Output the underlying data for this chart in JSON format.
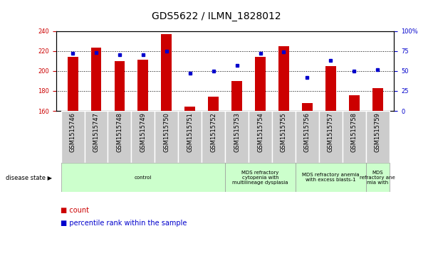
{
  "title": "GDS5622 / ILMN_1828012",
  "samples": [
    "GSM1515746",
    "GSM1515747",
    "GSM1515748",
    "GSM1515749",
    "GSM1515750",
    "GSM1515751",
    "GSM1515752",
    "GSM1515753",
    "GSM1515754",
    "GSM1515755",
    "GSM1515756",
    "GSM1515757",
    "GSM1515758",
    "GSM1515759"
  ],
  "bar_values": [
    214,
    223,
    210,
    211,
    237,
    164,
    174,
    190,
    214,
    225,
    168,
    205,
    176,
    183
  ],
  "bar_bottom": 160,
  "pct_values": [
    72,
    73,
    70,
    70,
    75,
    47,
    50,
    57,
    72,
    74,
    42,
    63,
    50,
    52
  ],
  "ylim_left": [
    160,
    240
  ],
  "ylim_right": [
    0,
    100
  ],
  "yticks_left": [
    160,
    180,
    200,
    220,
    240
  ],
  "yticks_right": [
    0,
    25,
    50,
    75,
    100
  ],
  "bar_color": "#cc0000",
  "dot_color": "#0000cc",
  "bg_color": "#ffffff",
  "gray_box_color": "#cccccc",
  "disease_color": "#ccffcc",
  "title_fontsize": 10,
  "tick_fontsize": 6,
  "label_fontsize": 6,
  "bar_width": 0.45,
  "groups": [
    {
      "label": "control",
      "start": 0,
      "end": 7
    },
    {
      "label": "MDS refractory\ncytopenia with\nmultilineage dysplasia",
      "start": 7,
      "end": 10
    },
    {
      "label": "MDS refractory anemia\nwith excess blasts-1",
      "start": 10,
      "end": 13
    },
    {
      "label": "MDS\nrefractory ane\nmia with",
      "start": 13,
      "end": 14
    }
  ]
}
